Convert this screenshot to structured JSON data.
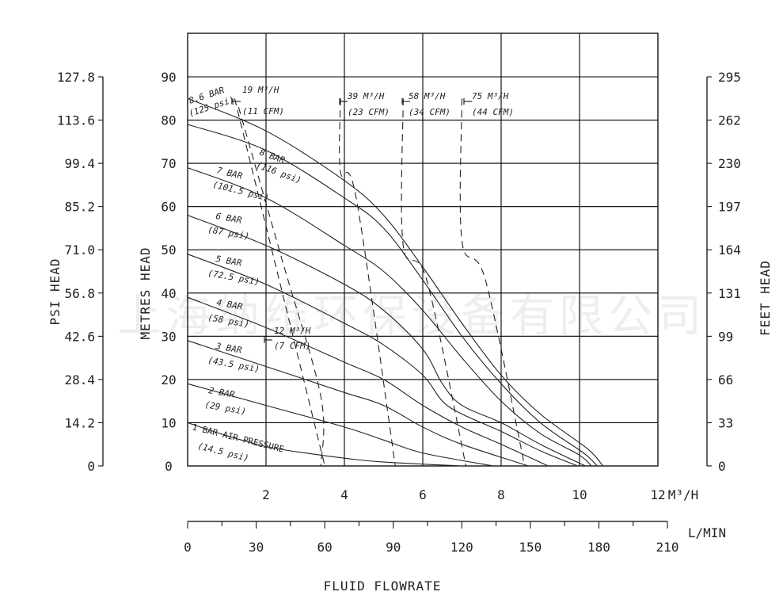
{
  "watermark": "上海纳维环保设备有限公司",
  "chart_data": {
    "type": "line",
    "xlabel": "FLUID FLOWRATE",
    "axes": {
      "x_m3h": {
        "unit": "M³/H",
        "range": [
          0,
          12
        ],
        "ticks": [
          "2",
          "4",
          "6",
          "8",
          "10",
          "12"
        ]
      },
      "x_lmin": {
        "unit": "L/MIN",
        "range": [
          0,
          210
        ],
        "ticks": [
          "0",
          "30",
          "60",
          "90",
          "120",
          "150",
          "180",
          "210"
        ]
      },
      "y_metres": {
        "label": "METRES HEAD",
        "range": [
          0,
          90
        ],
        "ticks": [
          "0",
          "10",
          "20",
          "30",
          "40",
          "50",
          "60",
          "70",
          "80",
          "90"
        ]
      },
      "y_psi": {
        "label": "PSI HEAD",
        "ticks": [
          "0",
          "14.2",
          "28.4",
          "42.6",
          "56.8",
          "71.0",
          "85.2",
          "99.4",
          "113.6",
          "127.8"
        ]
      },
      "y_feet": {
        "label": "FEET HEAD",
        "ticks": [
          "0",
          "33",
          "66",
          "99",
          "131",
          "164",
          "197",
          "230",
          "262",
          "295"
        ]
      }
    },
    "grid": true,
    "head_curves": [
      {
        "l1": "8.6 BAR",
        "l2": "(125 psi)",
        "points": [
          [
            0,
            85
          ],
          [
            2,
            77.5
          ],
          [
            4,
            66
          ],
          [
            5,
            58
          ],
          [
            6,
            46
          ],
          [
            7,
            33
          ],
          [
            8,
            21
          ],
          [
            9,
            12
          ],
          [
            10.2,
            4
          ],
          [
            10.6,
            0
          ]
        ]
      },
      {
        "l1": "8 BAR",
        "l2": "(116 psi)",
        "points": [
          [
            0,
            79
          ],
          [
            2,
            73
          ],
          [
            4,
            62
          ],
          [
            5,
            55
          ],
          [
            6,
            43
          ],
          [
            7,
            30
          ],
          [
            8,
            19
          ],
          [
            9,
            10
          ],
          [
            10.1,
            3
          ],
          [
            10.45,
            0
          ]
        ]
      },
      {
        "l1": "7 BAR",
        "l2": "(101.5 psi)",
        "points": [
          [
            0,
            69
          ],
          [
            2,
            62
          ],
          [
            4,
            51
          ],
          [
            5,
            45
          ],
          [
            6,
            36
          ],
          [
            7,
            25
          ],
          [
            8,
            15
          ],
          [
            9,
            7.5
          ],
          [
            10,
            2.5
          ],
          [
            10.3,
            0
          ]
        ]
      },
      {
        "l1": "6 BAR",
        "l2": "(87 psi)",
        "points": [
          [
            0,
            58
          ],
          [
            2,
            51
          ],
          [
            4,
            42
          ],
          [
            5,
            36
          ],
          [
            6,
            27
          ],
          [
            6.5,
            19
          ],
          [
            7,
            14
          ],
          [
            8,
            10
          ],
          [
            9,
            5
          ],
          [
            10.15,
            0
          ]
        ]
      },
      {
        "l1": "5 BAR",
        "l2": "(72.5 psi)",
        "points": [
          [
            0,
            49
          ],
          [
            2,
            42
          ],
          [
            4,
            33
          ],
          [
            5,
            28
          ],
          [
            6,
            21
          ],
          [
            6.5,
            15
          ],
          [
            7,
            12
          ],
          [
            8,
            8
          ],
          [
            9,
            3.5
          ],
          [
            9.95,
            0
          ]
        ]
      },
      {
        "l1": "4 BAR",
        "l2": "(58 psi)",
        "points": [
          [
            0,
            39
          ],
          [
            2,
            32
          ],
          [
            4,
            24
          ],
          [
            5,
            20
          ],
          [
            6,
            14
          ],
          [
            7,
            9
          ],
          [
            8,
            5
          ],
          [
            9.2,
            0
          ]
        ]
      },
      {
        "l1": "3 BAR",
        "l2": "(43.5 psi)",
        "points": [
          [
            0,
            29
          ],
          [
            2,
            23
          ],
          [
            4,
            17
          ],
          [
            5,
            14
          ],
          [
            6,
            9
          ],
          [
            7,
            5
          ],
          [
            8.7,
            0
          ]
        ]
      },
      {
        "l1": "2 BAR",
        "l2": "(29 psi)",
        "points": [
          [
            0,
            19
          ],
          [
            2,
            14
          ],
          [
            4,
            9
          ],
          [
            5,
            6
          ],
          [
            6,
            3
          ],
          [
            7.8,
            0
          ]
        ]
      },
      {
        "l1": "1 BAR AIR PRESSURE",
        "l2": "(14.5 psi)",
        "points": [
          [
            0,
            10
          ],
          [
            1,
            7
          ],
          [
            2,
            4.5
          ],
          [
            3,
            3
          ],
          [
            4,
            1.8
          ],
          [
            5,
            0.9
          ],
          [
            7,
            0
          ]
        ]
      }
    ],
    "air_curves": [
      {
        "l1": "12 M³/H",
        "l2": "(7 CFM)",
        "points": [
          [
            1.2,
            85
          ],
          [
            3.5,
            0
          ]
        ]
      },
      {
        "l1": "19 M³/H",
        "l2": "(11 CFM)",
        "points": [
          [
            1.2,
            85
          ],
          [
            3.5,
            0
          ]
        ]
      },
      {
        "l1": "39 M³/H",
        "l2": "(23 CFM)",
        "points": [
          [
            3.9,
            85
          ],
          [
            3.9,
            68
          ],
          [
            4.3,
            62
          ],
          [
            5.3,
            0
          ]
        ]
      },
      {
        "l1": "58 M³/H",
        "l2": "(34 CFM)",
        "points": [
          [
            5.5,
            85
          ],
          [
            5.5,
            51
          ],
          [
            6.1,
            43
          ],
          [
            7.1,
            0
          ]
        ]
      },
      {
        "l1": "75 M³/H",
        "l2": "(44 CFM)",
        "points": [
          [
            7.0,
            85
          ],
          [
            7.0,
            52
          ],
          [
            7.6,
            43
          ],
          [
            8.6,
            0
          ]
        ]
      }
    ]
  }
}
